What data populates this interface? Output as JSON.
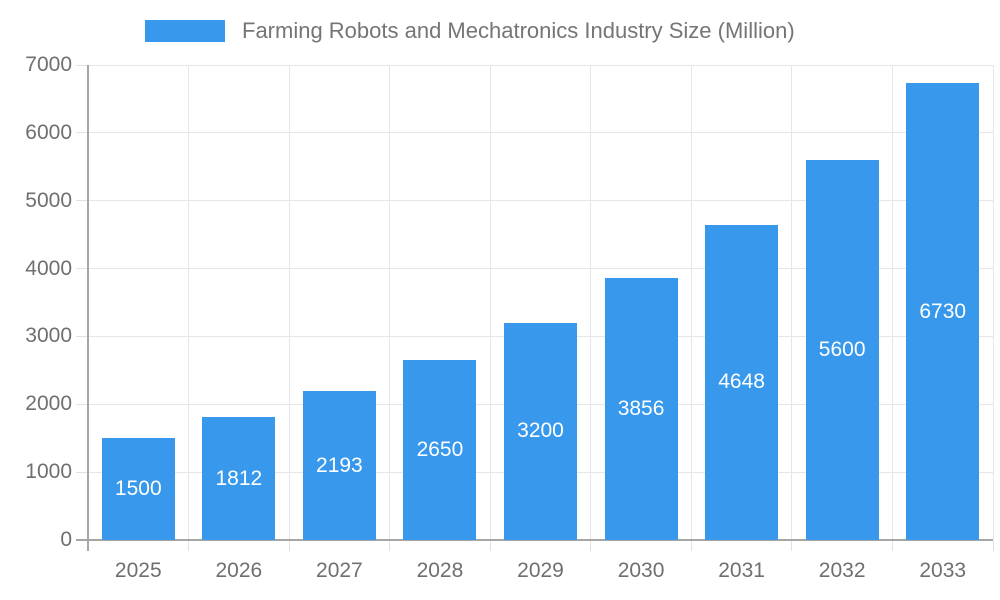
{
  "legend": {
    "label": "Farming Robots and Mechatronics Industry Size (Million)"
  },
  "chart_data": {
    "type": "bar",
    "title": "Farming Robots and Mechatronics Industry Size (Million)",
    "categories": [
      "2025",
      "2026",
      "2027",
      "2028",
      "2029",
      "2030",
      "2031",
      "2032",
      "2033"
    ],
    "values": [
      1500,
      1812,
      2193,
      2650,
      3200,
      3856,
      4648,
      5600,
      6730
    ],
    "value_labels": [
      "1500",
      "1812",
      "2193",
      "2650",
      "3200",
      "3856",
      "4648",
      "5600",
      "6730"
    ],
    "yticks": [
      0,
      1000,
      2000,
      3000,
      4000,
      5000,
      6000,
      7000
    ],
    "ytick_labels": [
      "0",
      "1000",
      "2000",
      "3000",
      "4000",
      "5000",
      "6000",
      "7000"
    ],
    "xlabel": "",
    "ylabel": "",
    "ylim": [
      0,
      7000
    ],
    "grid": true,
    "legend_position": "top-center",
    "colors": {
      "bar": "#3899ec",
      "bar_value_text": "#ffffff",
      "grid_line": "#e6e6e6",
      "minor_tick": "#e0e0e0",
      "axis_line": "#a6a6a6",
      "tick_text": "#6f6f6f",
      "legend_text": "#757575"
    }
  }
}
